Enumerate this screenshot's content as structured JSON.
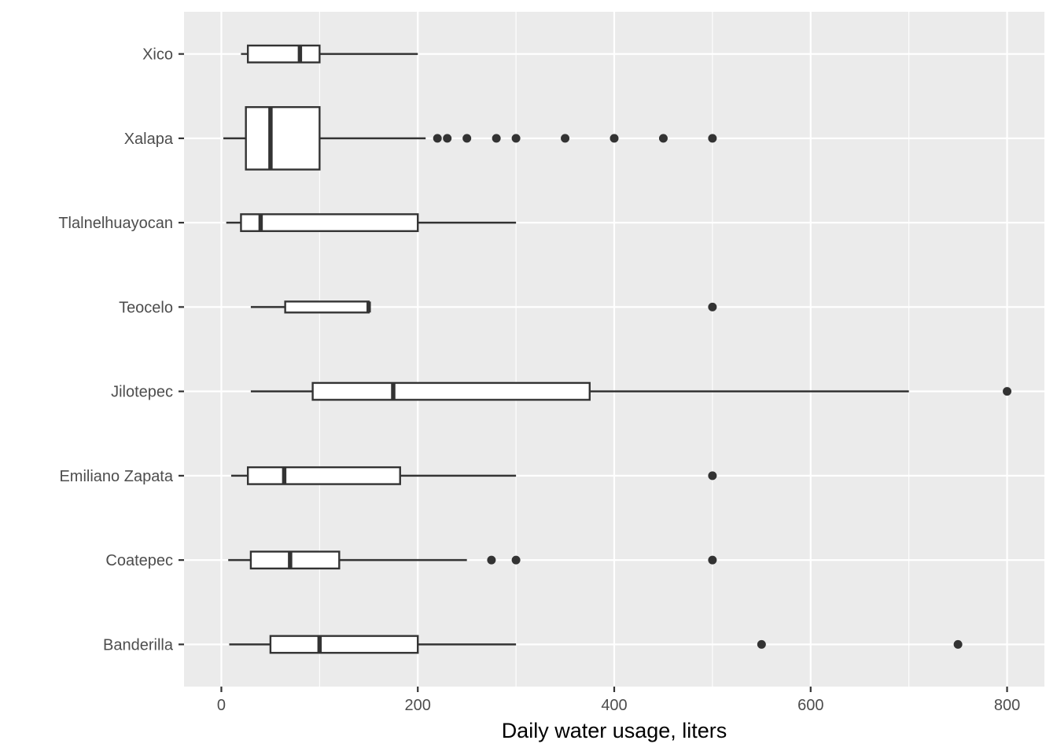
{
  "chart_data": {
    "type": "boxplot",
    "orientation": "horizontal",
    "title": "",
    "xlabel": "Daily water usage, liters",
    "ylabel": "",
    "xlim": [
      -38,
      838
    ],
    "x_ticks": [
      0,
      200,
      400,
      600,
      800
    ],
    "x_tick_labels": [
      "0",
      "200",
      "400",
      "600",
      "800"
    ],
    "grid": true,
    "legend": "none",
    "colors": {
      "panel": "#ebebeb",
      "grid": "#ffffff",
      "box_fill": "#ffffff",
      "stroke": "#333333",
      "outlier": "#333333"
    },
    "categories": [
      "Banderilla",
      "Coatepec",
      "Emiliano Zapata",
      "Jilotepec",
      "Teocelo",
      "Tlalnelhuayocan",
      "Xalapa",
      "Xico"
    ],
    "boxes": [
      {
        "category": "Banderilla",
        "lower_whisker": 8,
        "q1": 50,
        "median": 100,
        "q3": 200,
        "upper_whisker": 300,
        "outliers": [
          550,
          750
        ]
      },
      {
        "category": "Coatepec",
        "lower_whisker": 7,
        "q1": 30,
        "median": 70,
        "q3": 120,
        "upper_whisker": 250,
        "outliers": [
          275,
          300,
          500
        ]
      },
      {
        "category": "Emiliano Zapata",
        "lower_whisker": 10,
        "q1": 27,
        "median": 64,
        "q3": 182,
        "upper_whisker": 300,
        "outliers": [
          500
        ]
      },
      {
        "category": "Jilotepec",
        "lower_whisker": 30,
        "q1": 93,
        "median": 175,
        "q3": 375,
        "upper_whisker": 700,
        "outliers": [
          800
        ]
      },
      {
        "category": "Teocelo",
        "lower_whisker": 30,
        "q1": 65,
        "median": 150,
        "q3": 150,
        "upper_whisker": 150,
        "outliers": [
          500
        ]
      },
      {
        "category": "Tlalnelhuayocan",
        "lower_whisker": 5,
        "q1": 20,
        "median": 40,
        "q3": 200,
        "upper_whisker": 300,
        "outliers": []
      },
      {
        "category": "Xalapa",
        "lower_whisker": 2,
        "q1": 25,
        "median": 50,
        "q3": 100,
        "upper_whisker": 208,
        "outliers": [
          220,
          230,
          250,
          280,
          300,
          350,
          400,
          450,
          500
        ]
      },
      {
        "category": "Xico",
        "lower_whisker": 20,
        "q1": 27,
        "median": 80,
        "q3": 100,
        "upper_whisker": 200,
        "outliers": []
      }
    ],
    "box_width_scale": [
      0.2,
      0.2,
      0.2,
      0.2,
      0.13,
      0.2,
      0.74,
      0.2
    ]
  }
}
